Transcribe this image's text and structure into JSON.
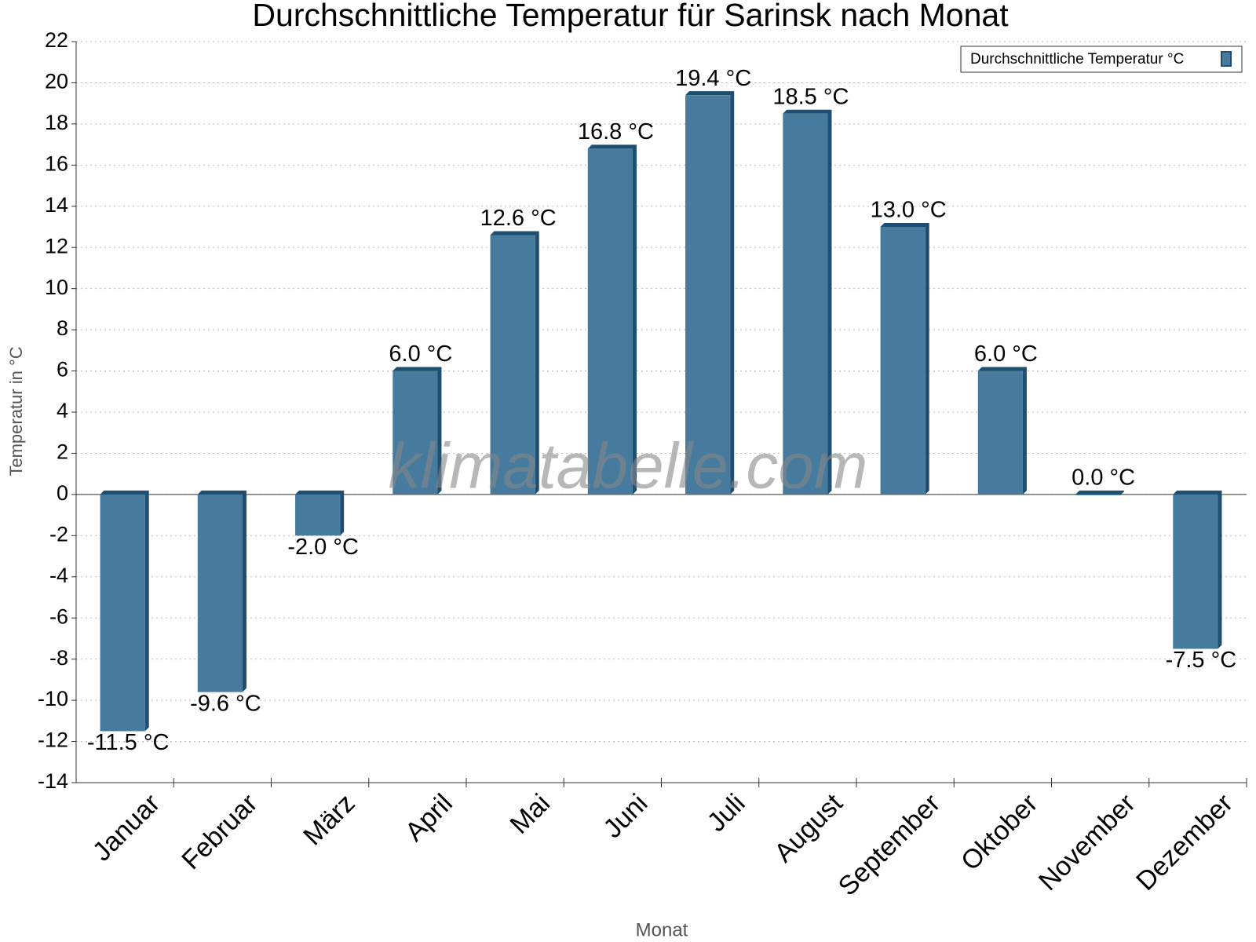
{
  "chart_data": {
    "type": "bar",
    "title": "Durchschnittliche Temperatur für Sarinsk nach Monat",
    "x_label": "Monat",
    "y_label": "Temperatur in °C",
    "watermark": "klimatabelle.com",
    "categories": [
      "Januar",
      "Februar",
      "März",
      "April",
      "Mai",
      "Juni",
      "Juli",
      "August",
      "September",
      "Oktober",
      "November",
      "Dezember"
    ],
    "series": [
      {
        "name": "Durchschnittliche Temperatur °C",
        "color": "#467b9d",
        "values": [
          -11.5,
          -9.6,
          -2.0,
          6.0,
          12.6,
          16.8,
          19.4,
          18.5,
          13.0,
          6.0,
          0.0,
          -7.5
        ],
        "value_labels": [
          "-11.5 °C",
          "-9.6 °C",
          "-2.0 °C",
          "6.0 °C",
          "12.6 °C",
          "16.8 °C",
          "19.4 °C",
          "18.5 °C",
          "13.0 °C",
          "6.0 °C",
          "0.0 °C",
          "-7.5 °C"
        ]
      }
    ],
    "ylim": [
      -14,
      22
    ],
    "yticks": [
      -14,
      -12,
      -10,
      -8,
      -6,
      -4,
      -2,
      0,
      2,
      4,
      6,
      8,
      10,
      12,
      14,
      16,
      18,
      20,
      22
    ],
    "grid": true,
    "legend": "top-right"
  }
}
